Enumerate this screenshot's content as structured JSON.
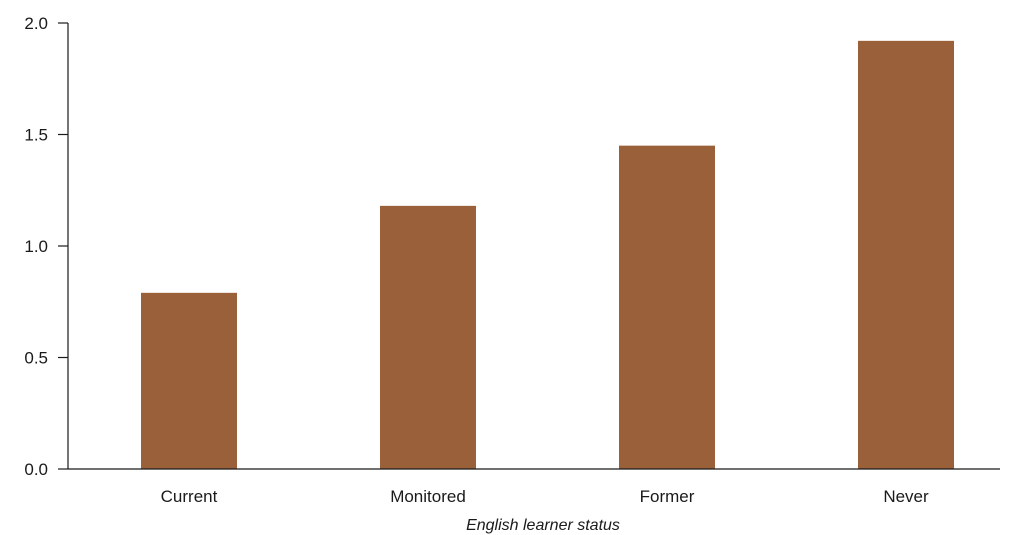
{
  "chart_data": {
    "type": "bar",
    "categories": [
      "Current",
      "Monitored",
      "Former",
      "Never"
    ],
    "values": [
      0.79,
      1.18,
      1.45,
      1.92
    ],
    "title": "",
    "xlabel": "English learner status",
    "ylabel": "",
    "ylim": [
      0,
      2.0
    ],
    "yticks": [
      "0.0",
      "0.5",
      "1.0",
      "1.5",
      "2.0"
    ],
    "bar_color": "#99603A",
    "axis_color": "#1a1a1a",
    "grid": false,
    "legend": "none"
  }
}
